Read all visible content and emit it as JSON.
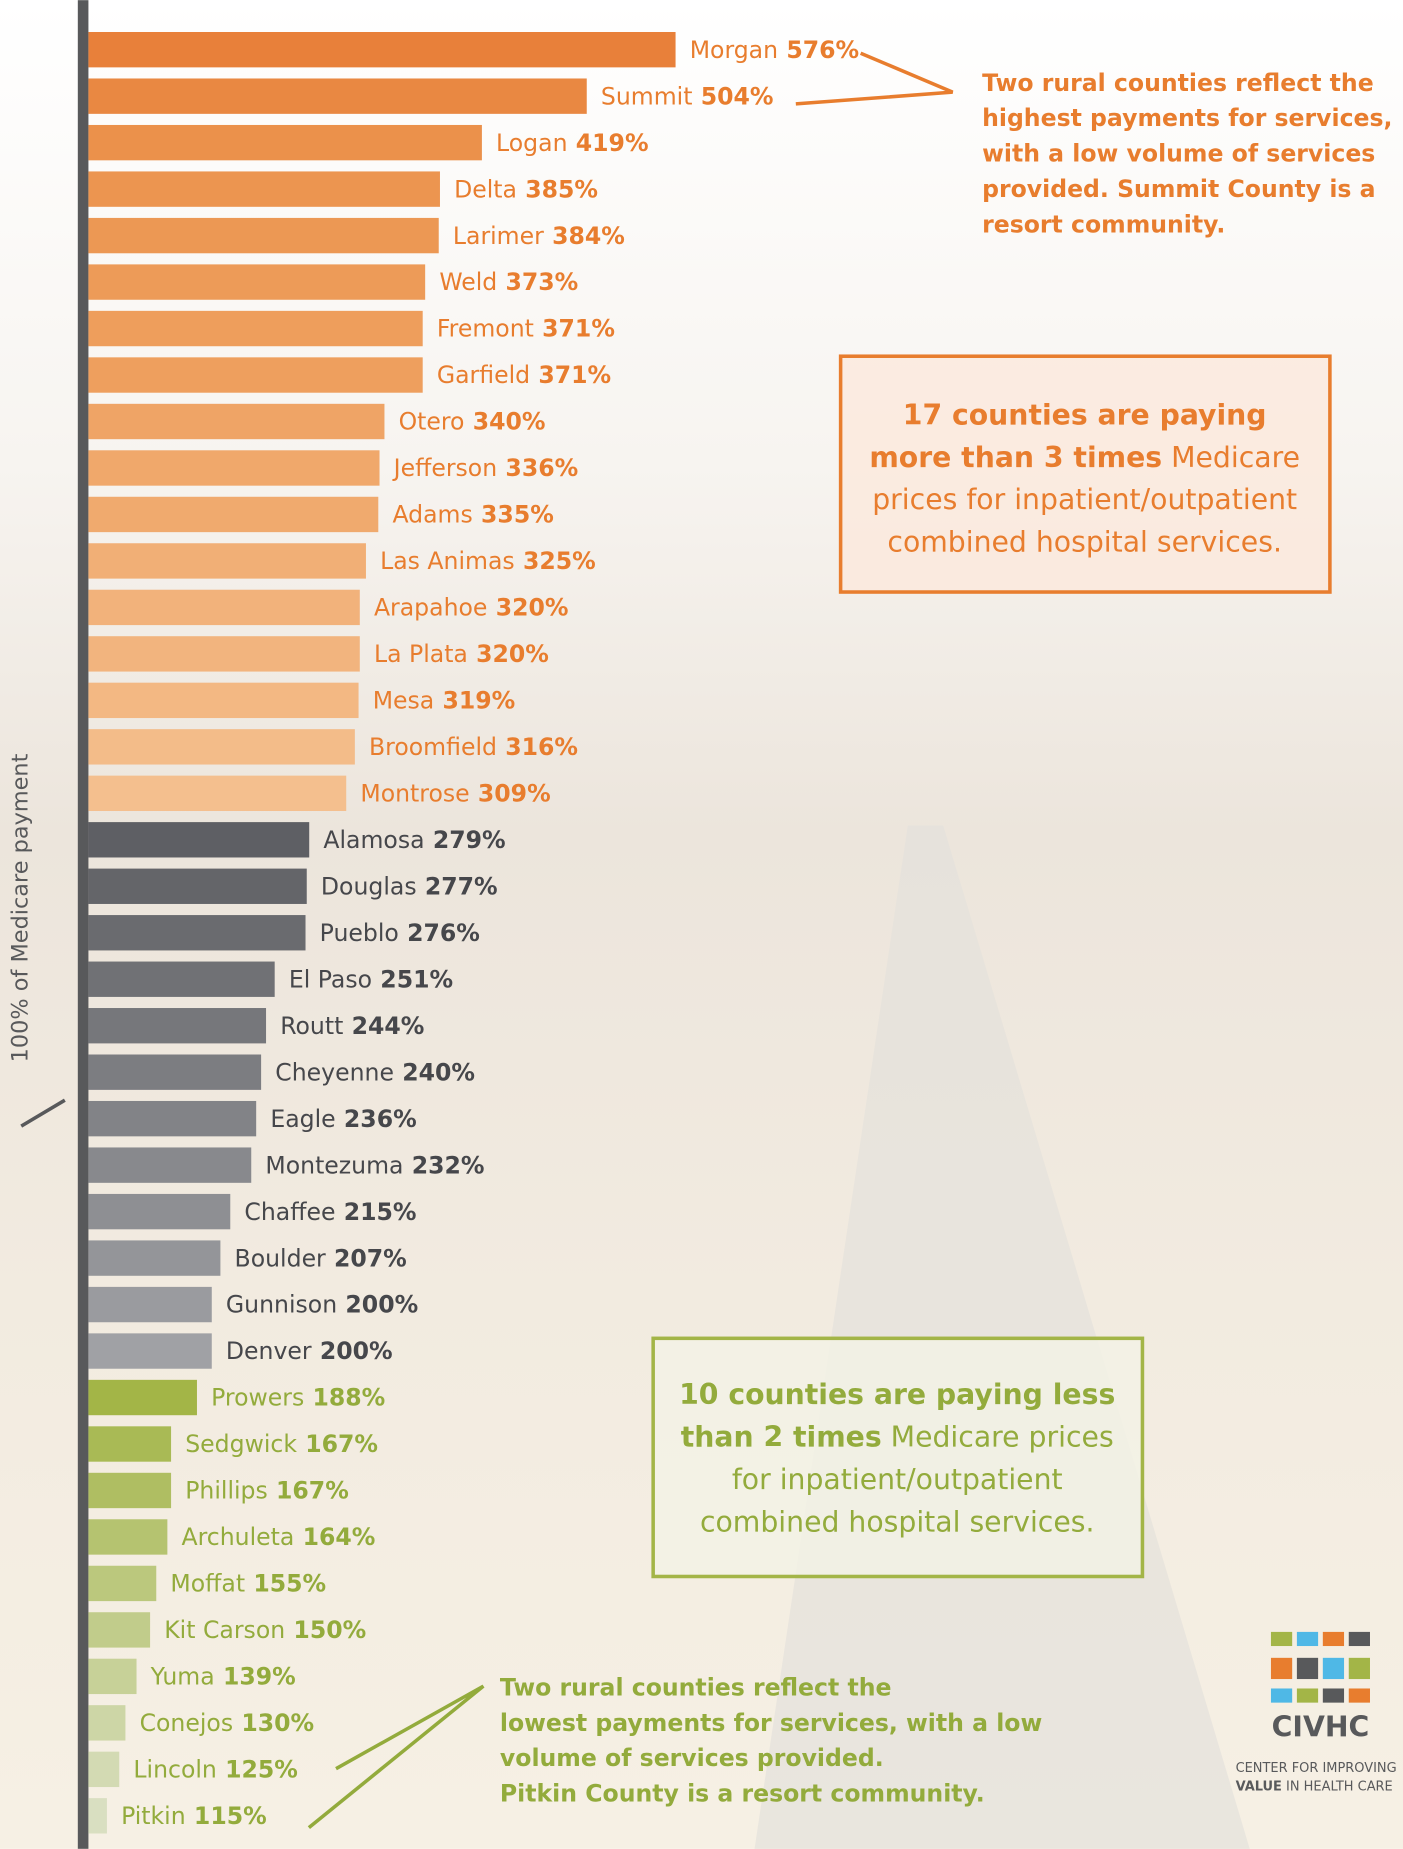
{
  "chart_data": {
    "type": "barh",
    "axis_label": "100% of Medicare payment",
    "categories": [
      "Morgan",
      "Summit",
      "Logan",
      "Delta",
      "Larimer",
      "Weld",
      "Fremont",
      "Garfield",
      "Otero",
      "Jefferson",
      "Adams",
      "Las Animas",
      "Arapahoe",
      "La Plata",
      "Mesa",
      "Broomfield",
      "Montrose",
      "Alamosa",
      "Douglas",
      "Pueblo",
      "El Paso",
      "Routt",
      "Cheyenne",
      "Eagle",
      "Montezuma",
      "Chaffee",
      "Boulder",
      "Gunnison",
      "Denver",
      "Prowers",
      "Sedgwick",
      "Phillips",
      "Archuleta",
      "Moffat",
      "Kit Carson",
      "Yuma",
      "Conejos",
      "Lincoln",
      "Pitkin"
    ],
    "values": [
      576,
      504,
      419,
      385,
      384,
      373,
      371,
      371,
      340,
      336,
      335,
      325,
      320,
      320,
      319,
      316,
      309,
      279,
      277,
      276,
      251,
      244,
      240,
      236,
      232,
      215,
      207,
      200,
      200,
      188,
      167,
      167,
      164,
      155,
      150,
      139,
      130,
      125,
      115
    ],
    "value_labels": [
      "576%",
      "504%",
      "419%",
      "385%",
      "384%",
      "373%",
      "371%",
      "371%",
      "340%",
      "336%",
      "335%",
      "325%",
      "320%",
      "320%",
      "319%",
      "316%",
      "309%",
      "279%",
      "277%",
      "276%",
      "251%",
      "244%",
      "240%",
      "236%",
      "232%",
      "215%",
      "207%",
      "200%",
      "200%",
      "188%",
      "167%",
      "167%",
      "164%",
      "155%",
      "150%",
      "139%",
      "130%",
      "125%",
      "115%"
    ],
    "colors": [
      "#e8803a",
      "#e98842",
      "#eb914b",
      "#ec9550",
      "#ec9854",
      "#ed9b58",
      "#ee9e5c",
      "#ee9f5e",
      "#efa466",
      "#f0a86b",
      "#f0aa6e",
      "#f1af76",
      "#f2b27b",
      "#f2b47e",
      "#f3b883",
      "#f3bc89",
      "#f4bf8e",
      "#5e5f64",
      "#646569",
      "#6a6b6f",
      "#707175",
      "#76777b",
      "#7c7d81",
      "#828387",
      "#88898d",
      "#8e8f93",
      "#949599",
      "#9a9b9f",
      "#a0a1a5",
      "#a3b547",
      "#a9ba55",
      "#afbe62",
      "#b5c370",
      "#bbc87d",
      "#c1cc8b",
      "#c7d198",
      "#cdd6a6",
      "#d3dab3",
      "#d9dfc1"
    ],
    "label_colors": [
      "#e87d2e",
      "#e87d2e",
      "#e87d2e",
      "#e87d2e",
      "#e87d2e",
      "#e87d2e",
      "#e87d2e",
      "#e87d2e",
      "#e87d2e",
      "#e87d2e",
      "#e87d2e",
      "#e87d2e",
      "#e87d2e",
      "#e87d2e",
      "#e87d2e",
      "#e87d2e",
      "#e87d2e",
      "#46474b",
      "#46474b",
      "#46474b",
      "#46474b",
      "#46474b",
      "#46474b",
      "#46474b",
      "#46474b",
      "#46474b",
      "#46474b",
      "#46474b",
      "#46474b",
      "#93ab3c",
      "#93ab3c",
      "#93ab3c",
      "#93ab3c",
      "#93ab3c",
      "#93ab3c",
      "#93ab3c",
      "#93ab3c",
      "#93ab3c",
      "#93ab3c"
    ],
    "xlim": [
      100,
      576
    ],
    "annotations": [
      {
        "color": "#e87d2e",
        "lines": [
          [
            {
              "text": "Two rural counties reflect the",
              "bold": true
            }
          ],
          [
            {
              "text": "highest payments for services,",
              "bold": true
            }
          ],
          [
            {
              "text": "with a low volume of services",
              "bold": true
            }
          ],
          [
            {
              "text": "provided. Summit County is a",
              "bold": true
            }
          ],
          [
            {
              "text": "resort community.",
              "bold": true
            }
          ]
        ]
      },
      {
        "color": "#e87d2e",
        "lines": [
          [
            {
              "text": "17 counties are paying",
              "bold": true
            }
          ],
          [
            {
              "text": "more than 3 times",
              "bold": true
            },
            {
              "text": " Medicare",
              "bold": false
            }
          ],
          [
            {
              "text": "prices for inpatient/outpatient",
              "bold": false
            }
          ],
          [
            {
              "text": "combined hospital services.",
              "bold": false
            }
          ]
        ]
      },
      {
        "color": "#93ab3c",
        "lines": [
          [
            {
              "text": "10 counties are paying less",
              "bold": true
            }
          ],
          [
            {
              "text": "than 2 times",
              "bold": true
            },
            {
              "text": " Medicare prices",
              "bold": false
            }
          ],
          [
            {
              "text": "for inpatient/outpatient",
              "bold": false
            }
          ],
          [
            {
              "text": "combined hospital services.",
              "bold": false
            }
          ]
        ]
      },
      {
        "color": "#93ab3c",
        "lines": [
          [
            {
              "text": "Two rural counties reflect the",
              "bold": true
            }
          ],
          [
            {
              "text": "lowest payments for services, with a low",
              "bold": true
            }
          ],
          [
            {
              "text": "volume of services provided.",
              "bold": true
            }
          ],
          [
            {
              "text": "Pitkin County is a resort community.",
              "bold": true
            }
          ]
        ]
      }
    ],
    "logo": {
      "name": "CIVHC",
      "line1": "CENTER FOR IMPROVING",
      "line2_bold": "VALUE",
      "line2": " IN HEALTH CARE"
    }
  }
}
